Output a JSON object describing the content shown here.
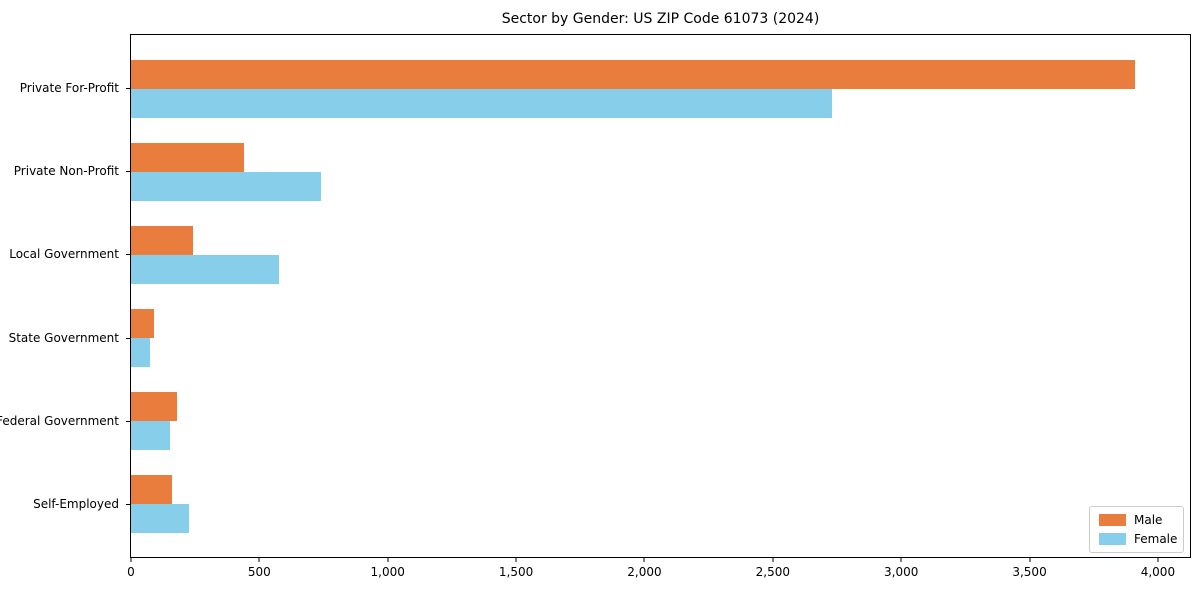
{
  "chart_data": {
    "type": "bar",
    "orientation": "horizontal",
    "title": "Sector by Gender: US ZIP Code 61073 (2024)",
    "categories": [
      "Private For-Profit",
      "Private Non-Profit",
      "Local Government",
      "State Government",
      "Federal Government",
      "Self-Employed"
    ],
    "series": [
      {
        "name": "Male",
        "color": "#e87d3e",
        "values": [
          3910,
          440,
          240,
          90,
          180,
          160
        ]
      },
      {
        "name": "Female",
        "color": "#87ceeb",
        "values": [
          2730,
          740,
          575,
          75,
          150,
          225
        ]
      }
    ],
    "x_ticks": [
      {
        "value": 0,
        "label": "0"
      },
      {
        "value": 500,
        "label": "500"
      },
      {
        "value": 1000,
        "label": "1,000"
      },
      {
        "value": 1500,
        "label": "1,500"
      },
      {
        "value": 2000,
        "label": "2,000"
      },
      {
        "value": 2500,
        "label": "2,500"
      },
      {
        "value": 3000,
        "label": "3,000"
      },
      {
        "value": 3500,
        "label": "3,500"
      },
      {
        "value": 4000,
        "label": "4,000"
      }
    ],
    "xlabel": "",
    "ylabel": "",
    "xlim": [
      0,
      4125
    ],
    "grid": false,
    "legend_position": "lower right",
    "background_color": "#ffffff",
    "axis_color": "#000000"
  }
}
